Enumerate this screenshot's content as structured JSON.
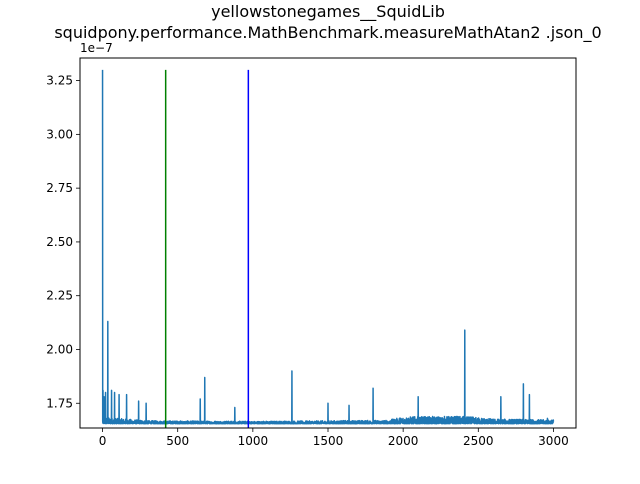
{
  "chart_data": {
    "type": "line",
    "title_line1": "yellowstonegames__SquidLib",
    "title_line2": "squidpony.performance.MathBenchmark.measureMathAtan2 .json_0",
    "xlabel": "",
    "ylabel": "",
    "y_multiplier_label": "1e−7",
    "xlim": [
      -150,
      3150
    ],
    "ylim": [
      1.635,
      3.355
    ],
    "xticks": [
      0,
      500,
      1000,
      1500,
      2000,
      2500,
      3000
    ],
    "xtick_labels": [
      "0",
      "500",
      "1000",
      "1500",
      "2000",
      "2500",
      "3000"
    ],
    "yticks": [
      1.75,
      2.0,
      2.25,
      2.5,
      2.75,
      3.0,
      3.25
    ],
    "ytick_labels": [
      "1.75",
      "2.00",
      "2.25",
      "2.50",
      "2.75",
      "3.00",
      "3.25"
    ],
    "grid": false,
    "series": [
      {
        "name": "measurements",
        "color": "#1f77b4",
        "x_max": 3000,
        "baseline": 1.655,
        "noise_profile": [
          [
            0,
            0.03
          ],
          [
            300,
            0.014
          ],
          [
            1000,
            0.011
          ],
          [
            1900,
            0.016
          ],
          [
            2000,
            0.032
          ],
          [
            2400,
            0.035
          ],
          [
            2600,
            0.022
          ],
          [
            3000,
            0.018
          ]
        ],
        "spikes": [
          [
            0,
            3.3
          ],
          [
            3,
            1.81
          ],
          [
            10,
            1.78
          ],
          [
            20,
            1.8
          ],
          [
            35,
            2.13
          ],
          [
            60,
            1.81
          ],
          [
            80,
            1.8
          ],
          [
            110,
            1.79
          ],
          [
            160,
            1.79
          ],
          [
            240,
            1.76
          ],
          [
            290,
            1.75
          ],
          [
            650,
            1.77
          ],
          [
            680,
            1.87
          ],
          [
            880,
            1.73
          ],
          [
            1260,
            1.9
          ],
          [
            1500,
            1.75
          ],
          [
            1640,
            1.74
          ],
          [
            1800,
            1.82
          ],
          [
            2100,
            1.78
          ],
          [
            2410,
            2.09
          ],
          [
            2650,
            1.78
          ],
          [
            2800,
            1.84
          ],
          [
            2840,
            1.79
          ],
          [
            2960,
            1.68
          ]
        ]
      }
    ],
    "vertical_lines": [
      {
        "name": "green-marker",
        "x": 420,
        "y_from": 1.635,
        "y_to": 3.3,
        "color": "#008000"
      },
      {
        "name": "blue-marker",
        "x": 970,
        "y_from": 1.635,
        "y_to": 3.3,
        "color": "#0000ff"
      }
    ]
  }
}
